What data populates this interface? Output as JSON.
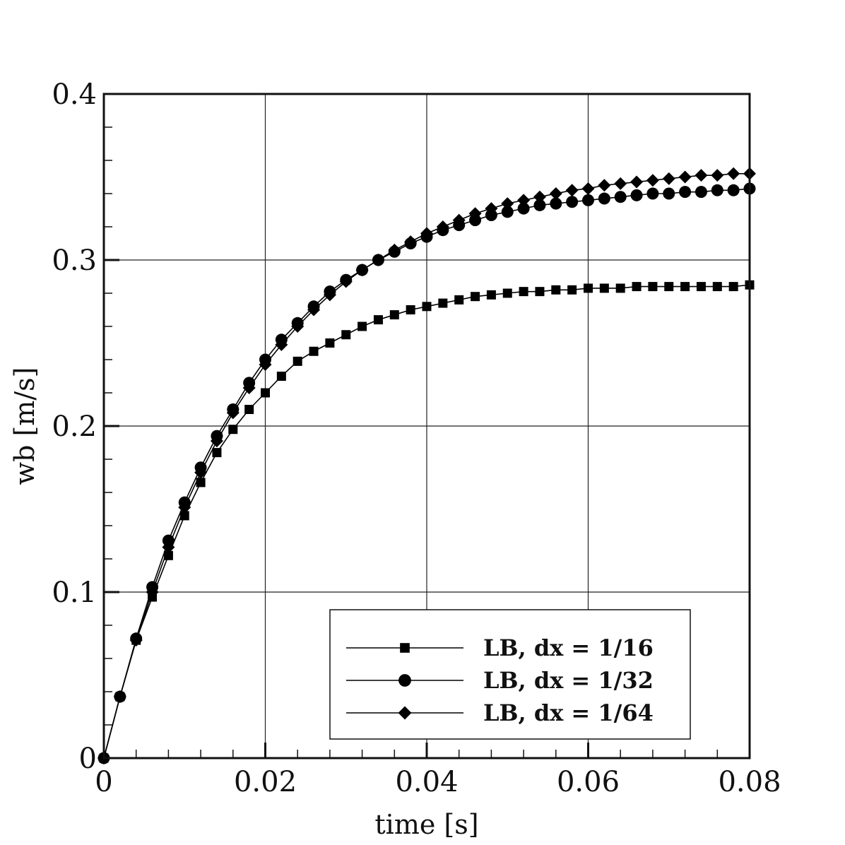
{
  "chart_data": {
    "type": "line",
    "title": "",
    "xlabel": "time [s]",
    "ylabel": "wb [m/s]",
    "xlim": [
      0,
      0.08
    ],
    "ylim": [
      0,
      0.4
    ],
    "xticks": [
      "0",
      "0.02",
      "0.04",
      "0.06",
      "0.08"
    ],
    "yticks": [
      "0",
      "0.1",
      "0.2",
      "0.3",
      "0.4"
    ],
    "grid": true,
    "legend_position": "bottom-right",
    "x": [
      0,
      0.002,
      0.004,
      0.006,
      0.008,
      0.01,
      0.012,
      0.014,
      0.016,
      0.018,
      0.02,
      0.022,
      0.024,
      0.026,
      0.028,
      0.03,
      0.032,
      0.034,
      0.036,
      0.038,
      0.04,
      0.042,
      0.044,
      0.046,
      0.048,
      0.05,
      0.052,
      0.054,
      0.056,
      0.058,
      0.06,
      0.062,
      0.064,
      0.066,
      0.068,
      0.07,
      0.072,
      0.074,
      0.076,
      0.078,
      0.08
    ],
    "series": [
      {
        "name": "LB, dx = 1/16",
        "marker": "square",
        "values": [
          0,
          0.037,
          0.071,
          0.097,
          0.122,
          0.146,
          0.166,
          0.184,
          0.198,
          0.21,
          0.22,
          0.23,
          0.239,
          0.245,
          0.25,
          0.255,
          0.26,
          0.264,
          0.267,
          0.27,
          0.272,
          0.274,
          0.276,
          0.278,
          0.279,
          0.28,
          0.281,
          0.281,
          0.282,
          0.282,
          0.283,
          0.283,
          0.283,
          0.284,
          0.284,
          0.284,
          0.284,
          0.284,
          0.284,
          0.284,
          0.285
        ]
      },
      {
        "name": "LB, dx = 1/32",
        "marker": "circle",
        "values": [
          0,
          0.037,
          0.072,
          0.103,
          0.131,
          0.154,
          0.175,
          0.194,
          0.21,
          0.226,
          0.24,
          0.252,
          0.262,
          0.272,
          0.281,
          0.288,
          0.294,
          0.3,
          0.305,
          0.31,
          0.314,
          0.318,
          0.321,
          0.324,
          0.327,
          0.329,
          0.331,
          0.333,
          0.334,
          0.335,
          0.336,
          0.337,
          0.338,
          0.339,
          0.34,
          0.34,
          0.341,
          0.341,
          0.342,
          0.342,
          0.343
        ]
      },
      {
        "name": "LB, dx = 1/64",
        "marker": "diamond",
        "values": [
          0,
          0.037,
          0.071,
          0.1,
          0.127,
          0.151,
          0.172,
          0.191,
          0.208,
          0.223,
          0.237,
          0.249,
          0.26,
          0.27,
          0.279,
          0.287,
          0.294,
          0.3,
          0.306,
          0.311,
          0.316,
          0.32,
          0.324,
          0.328,
          0.331,
          0.334,
          0.336,
          0.338,
          0.34,
          0.342,
          0.343,
          0.345,
          0.346,
          0.347,
          0.348,
          0.349,
          0.35,
          0.351,
          0.351,
          0.352,
          0.352
        ]
      }
    ]
  }
}
